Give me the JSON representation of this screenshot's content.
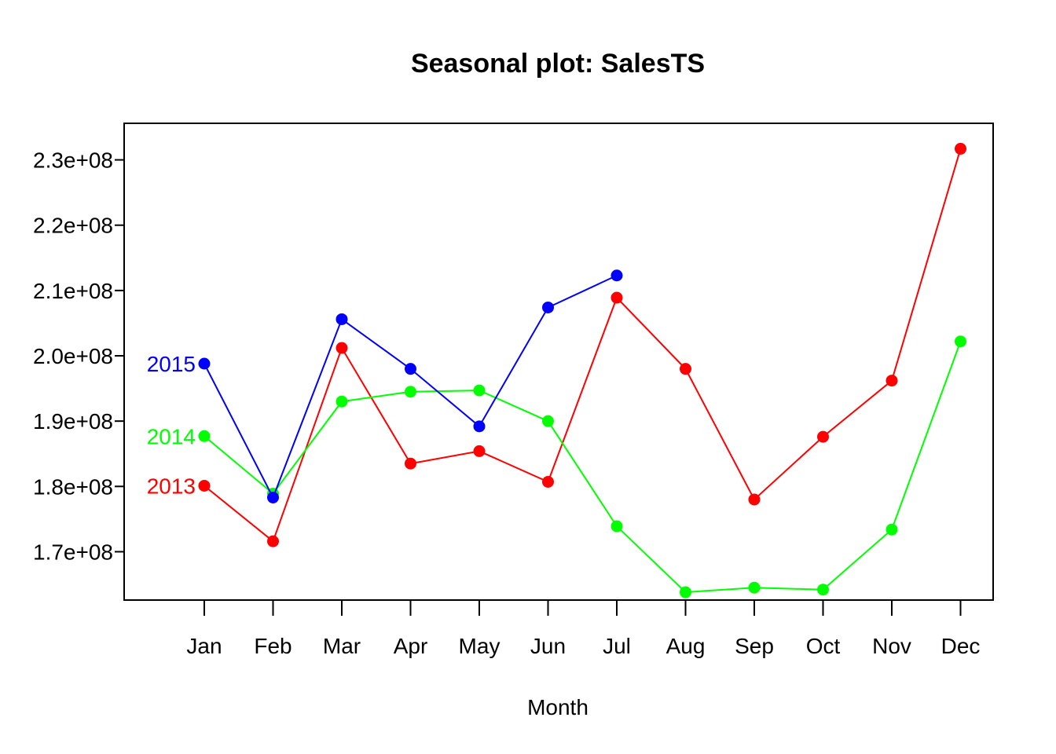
{
  "chart_data": {
    "type": "line",
    "title": "Seasonal plot: SalesTS",
    "xlabel": "Month",
    "ylabel": "",
    "categories": [
      "Jan",
      "Feb",
      "Mar",
      "Apr",
      "May",
      "Jun",
      "Jul",
      "Aug",
      "Sep",
      "Oct",
      "Nov",
      "Dec"
    ],
    "yticks": [
      170000000,
      180000000,
      190000000,
      200000000,
      210000000,
      220000000,
      230000000
    ],
    "ytick_labels": [
      "1.7e+08",
      "1.8e+08",
      "1.9e+08",
      "2.0e+08",
      "2.1e+08",
      "2.2e+08",
      "2.3e+08"
    ],
    "ylim": [
      162600000,
      235600000
    ],
    "grid": false,
    "legend": "none",
    "series": [
      {
        "name": "2013",
        "color": "#ff0000",
        "values": [
          180100000,
          171600000,
          201200000,
          183500000,
          185400000,
          180700000,
          208900000,
          198000000,
          178000000,
          187600000,
          196200000,
          231700000
        ]
      },
      {
        "name": "2014",
        "color": "#00ff00",
        "values": [
          187700000,
          178900000,
          193000000,
          194500000,
          194700000,
          190000000,
          173900000,
          163800000,
          164500000,
          164200000,
          173400000,
          202200000
        ]
      },
      {
        "name": "2015",
        "color": "#0000ff",
        "values": [
          198800000,
          178300000,
          205600000,
          198000000,
          189200000,
          207400000,
          212300000,
          null,
          null,
          null,
          null,
          null
        ]
      }
    ]
  }
}
